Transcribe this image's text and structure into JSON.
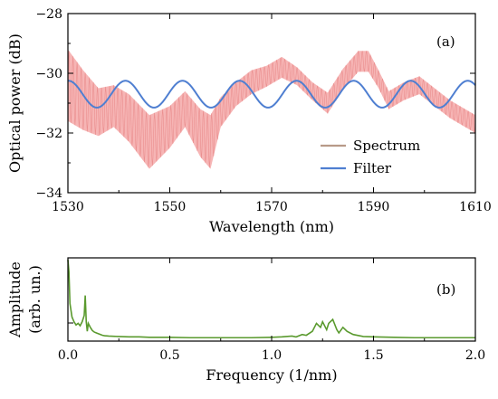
{
  "chart_data": [
    {
      "type": "line",
      "panel_label": "(a)",
      "xlabel": "Wavelength (nm)",
      "ylabel": "Optical power (dB)",
      "xlim": [
        1530,
        1610
      ],
      "ylim": [
        -34,
        -28
      ],
      "xticks": [
        1530,
        1550,
        1570,
        1590,
        1610
      ],
      "yticks": [
        -34,
        -32,
        -30,
        -28
      ],
      "xtick_labels": [
        "1530",
        "1550",
        "1570",
        "1590",
        "1610"
      ],
      "ytick_labels": [
        "−34",
        "−32",
        "−30",
        "−28"
      ],
      "grid": false,
      "legend_position": "bottom-right",
      "series": [
        {
          "name": "Spectrum",
          "color": "#b89a88",
          "fill_color": "#f4a8a8",
          "envelope_x": [
            1530,
            1533,
            1536,
            1539,
            1542,
            1546,
            1550,
            1553,
            1556,
            1558,
            1560,
            1563,
            1566,
            1569,
            1572,
            1575,
            1578,
            1581,
            1584,
            1587,
            1589,
            1591,
            1593,
            1596,
            1599,
            1602,
            1605,
            1608,
            1610
          ],
          "envelope_center": [
            -30.4,
            -30.9,
            -31.3,
            -31.1,
            -31.5,
            -32.3,
            -31.8,
            -31.2,
            -32.0,
            -32.3,
            -31.3,
            -30.7,
            -30.3,
            -30.1,
            -29.8,
            -30.1,
            -30.6,
            -31.0,
            -30.2,
            -29.6,
            -29.6,
            -30.2,
            -30.9,
            -30.6,
            -30.4,
            -30.8,
            -31.2,
            -31.5,
            -31.7
          ],
          "envelope_amplitude": [
            1.2,
            1.0,
            0.8,
            0.7,
            0.8,
            0.9,
            0.7,
            0.6,
            0.8,
            0.9,
            0.5,
            0.4,
            0.4,
            0.35,
            0.35,
            0.3,
            0.3,
            0.35,
            0.35,
            0.35,
            0.35,
            0.3,
            0.3,
            0.3,
            0.3,
            0.3,
            0.3,
            0.3,
            0.3
          ],
          "fringe_period_nm": 0.8
        },
        {
          "name": "Filter",
          "color": "#4f7fd1",
          "x": [
            1530,
            1535,
            1540,
            1545,
            1550,
            1555,
            1560,
            1565,
            1570,
            1575,
            1580,
            1585,
            1590,
            1595,
            1600,
            1605,
            1610
          ],
          "mean": -30.7,
          "amplitude": 0.45,
          "period_nm": 11.2,
          "phase_peak_nm": 1541.3
        }
      ]
    },
    {
      "type": "line",
      "panel_label": "(b)",
      "xlabel": "Frequency (1/nm)",
      "ylabel": "Amplitude",
      "ylabel_line2": "(arb. un.)",
      "xlim": [
        0.0,
        2.0
      ],
      "ylim": [
        0,
        1
      ],
      "xticks": [
        0.0,
        0.5,
        1.0,
        1.5,
        2.0
      ],
      "xtick_labels": [
        "0.0",
        "0.5",
        "1.0",
        "1.5",
        "2.0"
      ],
      "grid": false,
      "series": [
        {
          "color": "#5a9a2e",
          "x": [
            0.0,
            0.005,
            0.01,
            0.02,
            0.03,
            0.04,
            0.05,
            0.06,
            0.07,
            0.08,
            0.085,
            0.09,
            0.095,
            0.1,
            0.11,
            0.12,
            0.13,
            0.14,
            0.15,
            0.16,
            0.17,
            0.18,
            0.2,
            0.25,
            0.3,
            0.35,
            0.4,
            0.5,
            0.6,
            0.7,
            0.8,
            0.9,
            1.0,
            1.05,
            1.1,
            1.12,
            1.15,
            1.17,
            1.2,
            1.22,
            1.24,
            1.25,
            1.27,
            1.28,
            1.3,
            1.32,
            1.33,
            1.35,
            1.37,
            1.4,
            1.45,
            1.5,
            1.6,
            1.7,
            1.8,
            1.9,
            2.0
          ],
          "y": [
            1.0,
            0.85,
            0.45,
            0.28,
            0.22,
            0.18,
            0.2,
            0.17,
            0.22,
            0.3,
            0.55,
            0.22,
            0.1,
            0.2,
            0.15,
            0.11,
            0.09,
            0.08,
            0.07,
            0.06,
            0.05,
            0.045,
            0.04,
            0.035,
            0.03,
            0.03,
            0.025,
            0.025,
            0.02,
            0.02,
            0.02,
            0.02,
            0.025,
            0.03,
            0.04,
            0.03,
            0.06,
            0.05,
            0.1,
            0.2,
            0.15,
            0.22,
            0.12,
            0.2,
            0.25,
            0.12,
            0.08,
            0.15,
            0.1,
            0.06,
            0.035,
            0.03,
            0.025,
            0.02,
            0.02,
            0.02,
            0.02
          ]
        }
      ]
    }
  ]
}
